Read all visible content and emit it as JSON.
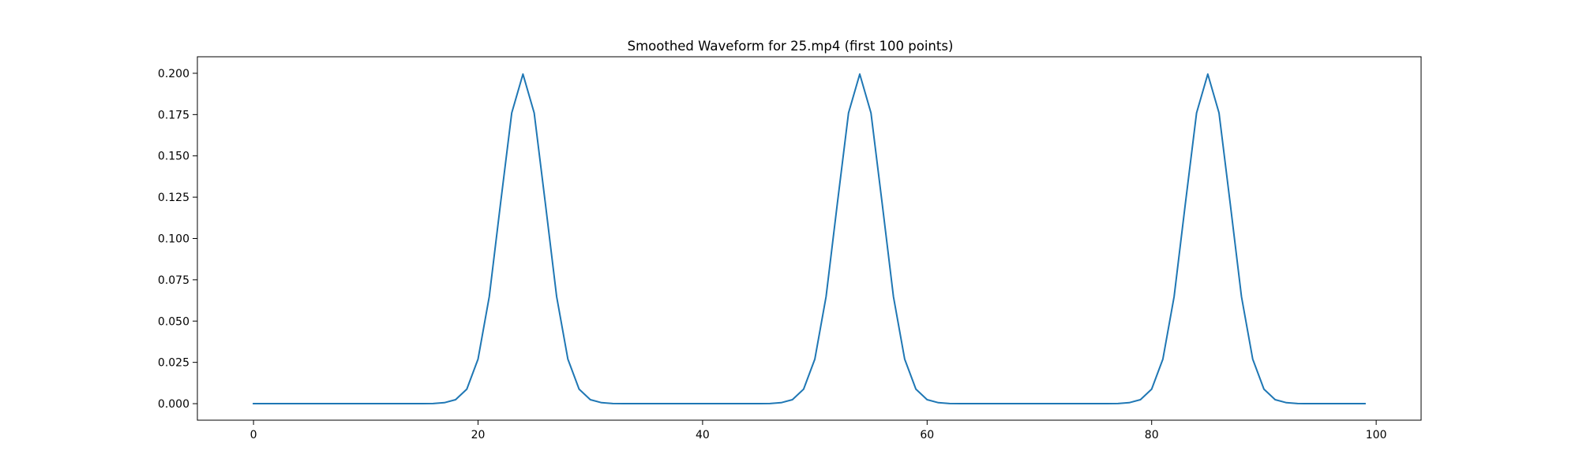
{
  "chart_data": {
    "type": "line",
    "title": "Smoothed Waveform for 25.mp4 (first 100 points)",
    "xlabel": "",
    "ylabel": "",
    "xlim": [
      -5,
      104
    ],
    "ylim": [
      -0.01,
      0.21
    ],
    "xticks": [
      0,
      20,
      40,
      60,
      80,
      100
    ],
    "yticks": [
      0.0,
      0.025,
      0.05,
      0.075,
      0.1,
      0.125,
      0.15,
      0.175,
      0.2
    ],
    "ytick_labels": [
      "0.000",
      "0.025",
      "0.050",
      "0.075",
      "0.100",
      "0.125",
      "0.150",
      "0.175",
      "0.200"
    ],
    "xtick_labels": [
      "0",
      "20",
      "40",
      "60",
      "80",
      "100"
    ],
    "grid": false,
    "series": [
      {
        "color": "#1f77b4",
        "x": [
          0,
          1,
          2,
          3,
          4,
          5,
          6,
          7,
          8,
          9,
          10,
          11,
          12,
          13,
          14,
          15,
          16,
          17,
          18,
          19,
          20,
          21,
          22,
          23,
          24,
          25,
          26,
          27,
          28,
          29,
          30,
          31,
          32,
          33,
          34,
          35,
          36,
          37,
          38,
          39,
          40,
          41,
          42,
          43,
          44,
          45,
          46,
          47,
          48,
          49,
          50,
          51,
          52,
          53,
          54,
          55,
          56,
          57,
          58,
          59,
          60,
          61,
          62,
          63,
          64,
          65,
          66,
          67,
          68,
          69,
          70,
          71,
          72,
          73,
          74,
          75,
          76,
          77,
          78,
          79,
          80,
          81,
          82,
          83,
          84,
          85,
          86,
          87,
          88,
          89,
          90,
          91,
          92,
          93,
          94,
          95,
          96,
          97,
          98,
          99
        ],
        "values": [
          0,
          0,
          0,
          0,
          0,
          0,
          0,
          0,
          0,
          0,
          0,
          0,
          0,
          0,
          0,
          0,
          0.0001,
          0.0006,
          0.0024,
          0.0088,
          0.027,
          0.0648,
          0.121,
          0.176,
          0.1995,
          0.176,
          0.121,
          0.0648,
          0.027,
          0.0088,
          0.0024,
          0.0006,
          0.0001,
          0,
          0,
          0,
          0,
          0,
          0,
          0,
          0,
          0,
          0,
          0,
          0,
          0,
          0.0001,
          0.0006,
          0.0024,
          0.0088,
          0.027,
          0.0648,
          0.121,
          0.176,
          0.1995,
          0.176,
          0.121,
          0.0648,
          0.027,
          0.0088,
          0.0024,
          0.0006,
          0.0001,
          0,
          0,
          0,
          0,
          0,
          0,
          0,
          0,
          0,
          0,
          0,
          0,
          0,
          0,
          0.0001,
          0.0006,
          0.0024,
          0.0088,
          0.027,
          0.0648,
          0.121,
          0.176,
          0.1995,
          0.176,
          0.121,
          0.0648,
          0.027,
          0.0088,
          0.0024,
          0.0006,
          0.0001,
          0,
          0,
          0,
          0,
          0,
          0
        ]
      }
    ]
  }
}
